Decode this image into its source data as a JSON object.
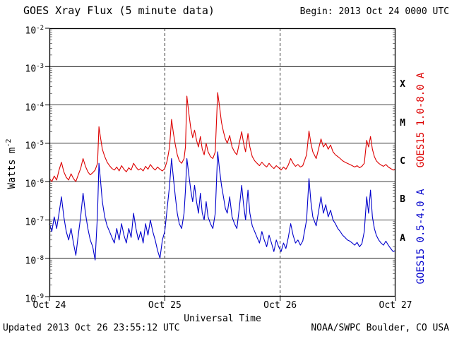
{
  "header": {
    "title": "GOES Xray Flux (5 minute data)",
    "begin_label": "Begin: 2013 Oct 24 0000 UTC"
  },
  "footer": {
    "updated": "Updated 2013 Oct 26 23:55:12 UTC",
    "credit": "NOAA/SWPC Boulder, CO USA"
  },
  "y_axis": {
    "label_base": "Watts m",
    "label_exponent": "-2",
    "tick_exponents": [
      -2,
      -3,
      -4,
      -5,
      -6,
      -7,
      -8,
      -9
    ]
  },
  "x_axis": {
    "label": "Universal Time",
    "ticks": [
      {
        "hour": 0,
        "label": "Oct 24"
      },
      {
        "hour": 24,
        "label": "Oct 25"
      },
      {
        "hour": 48,
        "label": "Oct 26"
      },
      {
        "hour": 72,
        "label": "Oct 27"
      }
    ]
  },
  "right_axis": {
    "flare_classes": [
      {
        "label": "X",
        "log_center": -3.5
      },
      {
        "label": "M",
        "log_center": -4.5
      },
      {
        "label": "C",
        "log_center": -5.5
      },
      {
        "label": "B",
        "log_center": -6.5
      },
      {
        "label": "A",
        "log_center": -7.5
      }
    ]
  },
  "chart_data": {
    "type": "line",
    "title": "GOES Xray Flux (5 minute data)",
    "xlabel": "Universal Time",
    "ylabel": "Watts m^-2",
    "y_scale": "log",
    "ylim": [
      1e-09,
      0.01
    ],
    "xlim_hours": [
      0,
      72
    ],
    "x_unit": "hours since 2013 Oct 24 0000 UTC",
    "grid": {
      "h_line_exponents": [
        -3,
        -4,
        -5,
        -6,
        -7,
        -8
      ],
      "v_dashed_hours": [
        24,
        48
      ]
    },
    "x_hours": [
      0,
      0.5,
      1,
      1.5,
      2,
      2.5,
      3,
      3.5,
      4,
      4.5,
      5,
      5.5,
      6,
      6.5,
      7,
      7.5,
      8,
      8.5,
      9,
      9.5,
      10,
      10.3,
      10.6,
      11,
      11.5,
      12,
      12.5,
      13,
      13.5,
      14,
      14.5,
      15,
      15.5,
      16,
      16.5,
      17,
      17.5,
      18,
      18.5,
      19,
      19.5,
      20,
      20.5,
      21,
      21.5,
      22,
      22.5,
      23,
      23.5,
      24,
      24.5,
      25,
      25.4,
      25.8,
      26.2,
      26.6,
      27,
      27.5,
      28,
      28.3,
      28.6,
      29,
      29.4,
      29.8,
      30.2,
      30.6,
      31,
      31.4,
      31.8,
      32.2,
      32.6,
      33,
      33.5,
      34,
      34.5,
      35,
      35.4,
      35.8,
      36.2,
      36.6,
      37,
      37.5,
      38,
      38.5,
      39,
      39.5,
      40,
      40.4,
      40.8,
      41.3,
      41.7,
      42.2,
      42.7,
      43.2,
      43.7,
      44.2,
      44.7,
      45.2,
      45.7,
      46.2,
      46.7,
      47.2,
      47.7,
      48.2,
      48.7,
      49.2,
      49.7,
      50.2,
      50.7,
      51.2,
      51.7,
      52.2,
      52.7,
      53.5,
      54,
      54.4,
      54.8,
      55.5,
      56.5,
      57,
      57.5,
      58,
      58.5,
      59,
      59.5,
      60,
      60.5,
      61,
      61.5,
      62,
      62.5,
      63,
      63.5,
      64,
      64.5,
      65,
      65.5,
      66,
      66.4,
      66.8,
      67.2,
      67.6,
      68,
      68.5,
      69,
      69.5,
      70,
      70.5,
      71,
      71.5,
      72
    ],
    "series": [
      {
        "name": "GOES15 1.0-8.0 A",
        "color": "#dd0000",
        "values": [
          1.2e-06,
          1e-06,
          1.4e-06,
          1.1e-06,
          2e-06,
          3.2e-06,
          1.8e-06,
          1.3e-06,
          1.1e-06,
          1.6e-06,
          1.2e-06,
          1e-06,
          1.5e-06,
          2.2e-06,
          4e-06,
          2.5e-06,
          1.8e-06,
          1.5e-06,
          1.7e-06,
          2e-06,
          3e-06,
          2.7e-05,
          1.5e-05,
          7e-06,
          4.5e-06,
          3.2e-06,
          2.6e-06,
          2.2e-06,
          2e-06,
          2.4e-06,
          1.9e-06,
          2.6e-06,
          2.1e-06,
          1.8e-06,
          2.3e-06,
          2e-06,
          3e-06,
          2.4e-06,
          2e-06,
          2.2e-06,
          1.9e-06,
          2.5e-06,
          2.1e-06,
          2.8e-06,
          2.3e-06,
          2e-06,
          2.4e-06,
          2.1e-06,
          1.9e-06,
          2.2e-06,
          3.5e-06,
          8e-06,
          4.2e-05,
          1.8e-05,
          9e-06,
          5e-06,
          3.5e-06,
          3e-06,
          4e-06,
          8e-06,
          0.00017,
          6e-05,
          2.5e-05,
          1.4e-05,
          2.2e-05,
          1.2e-05,
          8e-06,
          1.5e-05,
          7e-06,
          5e-06,
          1e-05,
          6e-06,
          4.5e-06,
          4e-06,
          6e-06,
          0.00021,
          9e-05,
          3.5e-05,
          2e-05,
          1.3e-05,
          1e-05,
          1.6e-05,
          8e-06,
          6e-06,
          5e-06,
          1e-05,
          2e-05,
          1e-05,
          6e-06,
          1.8e-05,
          8e-06,
          4.5e-06,
          3.5e-06,
          3e-06,
          2.6e-06,
          3.2e-06,
          2.7e-06,
          2.4e-06,
          3e-06,
          2.5e-06,
          2.2e-06,
          2.6e-06,
          2.3e-06,
          2e-06,
          2.4e-06,
          2.1e-06,
          2.7e-06,
          4e-06,
          3e-06,
          2.5e-06,
          2.8e-06,
          2.4e-06,
          2.6e-06,
          5e-06,
          2.1e-05,
          1e-05,
          6e-06,
          4e-06,
          1.3e-05,
          8e-06,
          1e-05,
          7e-06,
          9e-06,
          6e-06,
          5e-06,
          4.5e-06,
          4e-06,
          3.5e-06,
          3.2e-06,
          3e-06,
          2.8e-06,
          2.6e-06,
          2.4e-06,
          2.6e-06,
          2.3e-06,
          2.5e-06,
          3e-06,
          1.2e-05,
          8e-06,
          1.5e-05,
          7e-06,
          4.5e-06,
          3.5e-06,
          3e-06,
          2.7e-06,
          2.5e-06,
          2.8e-06,
          2.4e-06,
          2.2e-06,
          2e-06,
          2.1e-06
        ]
      },
      {
        "name": "GOES15 0.5-4.0 A",
        "color": "#0000cc",
        "values": [
          8e-08,
          5e-08,
          1.2e-07,
          6e-08,
          1.5e-07,
          4e-07,
          1.2e-07,
          5e-08,
          3e-08,
          6e-08,
          2.5e-08,
          1.2e-08,
          4e-08,
          1.2e-07,
          5e-07,
          1.5e-07,
          6e-08,
          3e-08,
          2e-08,
          9e-09,
          1.5e-07,
          3e-06,
          1.2e-06,
          3e-07,
          1.2e-07,
          7e-08,
          5e-08,
          3.5e-08,
          2.5e-08,
          6e-08,
          3e-08,
          8e-08,
          4e-08,
          2.5e-08,
          6e-08,
          3.5e-08,
          1.5e-07,
          6e-08,
          3e-08,
          5e-08,
          2.5e-08,
          8e-08,
          4e-08,
          1e-07,
          5e-08,
          3e-08,
          1.6e-08,
          1e-08,
          3e-08,
          5e-08,
          2e-07,
          8e-07,
          4e-06,
          1.2e-06,
          4e-07,
          1.5e-07,
          8e-08,
          6e-08,
          1.5e-07,
          6e-07,
          4e-06,
          1.5e-06,
          6e-07,
          3e-07,
          8e-07,
          3e-07,
          1.5e-07,
          5e-07,
          1.5e-07,
          1e-07,
          3e-07,
          1.2e-07,
          8e-08,
          6e-08,
          1.5e-07,
          6e-06,
          2e-06,
          8e-07,
          4e-07,
          2e-07,
          1.5e-07,
          4e-07,
          1.2e-07,
          8e-08,
          6e-08,
          2e-07,
          8e-07,
          2.5e-07,
          1e-07,
          6e-07,
          1.5e-07,
          7e-08,
          5e-08,
          3.5e-08,
          2.5e-08,
          5e-08,
          3e-08,
          2e-08,
          4e-08,
          2.5e-08,
          1.5e-08,
          3e-08,
          2e-08,
          1.5e-08,
          2.5e-08,
          1.8e-08,
          3.5e-08,
          8e-08,
          4e-08,
          2.5e-08,
          3e-08,
          2.2e-08,
          2.8e-08,
          1e-07,
          1.2e-06,
          3e-07,
          1.2e-07,
          7e-08,
          4e-07,
          1.5e-07,
          2.5e-07,
          1.2e-07,
          1.8e-07,
          1e-07,
          8e-08,
          6e-08,
          5e-08,
          4e-08,
          3.5e-08,
          3e-08,
          2.8e-08,
          2.5e-08,
          2.2e-08,
          2.6e-08,
          2e-08,
          2.4e-08,
          5e-08,
          4e-07,
          1.5e-07,
          6e-07,
          1.2e-07,
          6e-08,
          4e-08,
          3e-08,
          2.5e-08,
          2.2e-08,
          2.8e-08,
          2.2e-08,
          1.8e-08,
          1.5e-08,
          1.6e-08
        ]
      }
    ]
  }
}
